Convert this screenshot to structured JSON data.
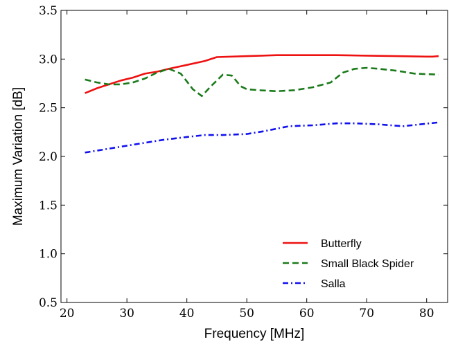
{
  "chart_data": {
    "type": "line",
    "title": "",
    "xlabel": "Frequency [MHz]",
    "ylabel": "Maximum Variation [dB]",
    "xlim": [
      19,
      83.5
    ],
    "ylim": [
      0.5,
      3.5
    ],
    "xticks": [
      20,
      30,
      40,
      50,
      60,
      70,
      80
    ],
    "yticks": [
      0.5,
      1.0,
      1.5,
      2.0,
      2.5,
      3.0,
      3.5
    ],
    "ytick_labels": [
      "0.5",
      "1.0",
      "1.5",
      "2.0",
      "2.5",
      "3.0",
      "3.5"
    ],
    "grid": false,
    "legend": "lower-right",
    "series": [
      {
        "name": "Butterfly",
        "color": "#ee1111",
        "style": "solid",
        "x": [
          23,
          25,
          27,
          29,
          31,
          33,
          35,
          37,
          40,
          43,
          45,
          50,
          55,
          60,
          65,
          70,
          75,
          80,
          81,
          82
        ],
        "y": [
          2.65,
          2.7,
          2.74,
          2.78,
          2.81,
          2.85,
          2.87,
          2.9,
          2.94,
          2.98,
          3.02,
          3.03,
          3.04,
          3.04,
          3.04,
          3.035,
          3.03,
          3.025,
          3.025,
          3.03
        ]
      },
      {
        "name": "Small Black Spider",
        "color": "#1a7a1a",
        "style": "dashed",
        "x": [
          23,
          25,
          27,
          29,
          31,
          33,
          35,
          37,
          39,
          41,
          42.5,
          44,
          46,
          47.5,
          49,
          50,
          52,
          55,
          58,
          61,
          64,
          66,
          68,
          70,
          72,
          75,
          78,
          82
        ],
        "y": [
          2.79,
          2.76,
          2.74,
          2.74,
          2.76,
          2.8,
          2.86,
          2.9,
          2.85,
          2.69,
          2.62,
          2.72,
          2.84,
          2.83,
          2.72,
          2.69,
          2.68,
          2.67,
          2.68,
          2.71,
          2.76,
          2.86,
          2.9,
          2.91,
          2.9,
          2.88,
          2.85,
          2.84
        ]
      },
      {
        "name": "Salla",
        "color": "#1111ee",
        "style": "dashdot",
        "x": [
          23,
          26,
          30,
          33,
          36,
          40,
          43,
          46,
          50,
          53,
          57,
          61,
          65,
          68,
          72,
          76,
          79,
          82
        ],
        "y": [
          2.04,
          2.07,
          2.11,
          2.14,
          2.17,
          2.2,
          2.22,
          2.22,
          2.23,
          2.26,
          2.31,
          2.32,
          2.34,
          2.34,
          2.33,
          2.31,
          2.33,
          2.35
        ]
      }
    ]
  }
}
